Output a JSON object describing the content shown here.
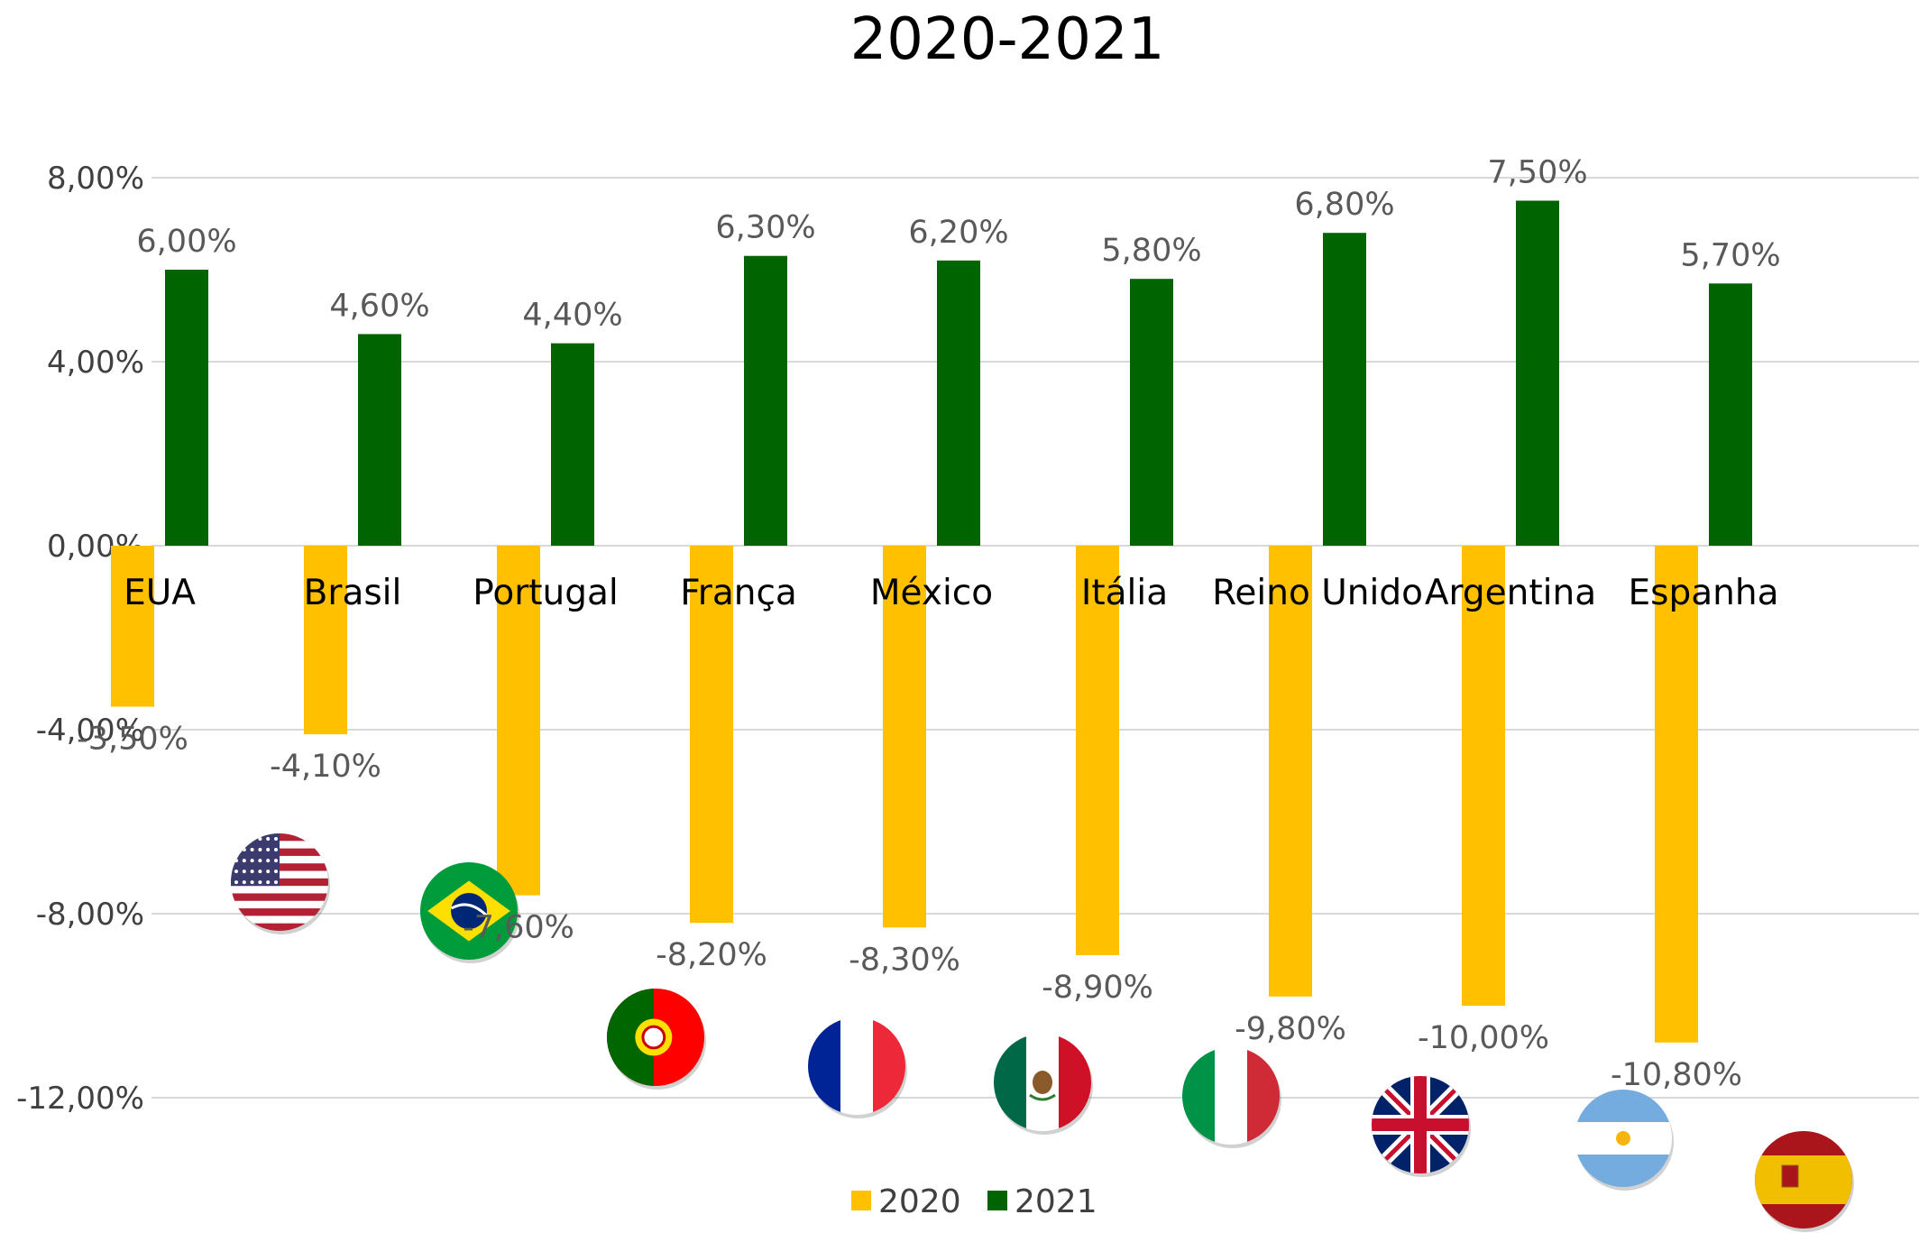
{
  "chart_data": {
    "type": "bar",
    "title": "2020-2021",
    "xlabel": "",
    "ylabel": "",
    "ylim": [
      -14,
      8
    ],
    "y_ticks": [
      8,
      4,
      0,
      -4,
      -8,
      -12
    ],
    "y_tick_labels": [
      "8,00%",
      "4,00%",
      "0,00%",
      "-4,00%",
      "-8,00%",
      "-12,00%"
    ],
    "grid": true,
    "legend_position": "bottom",
    "categories": [
      "EUA",
      "Brasil",
      "Portugal",
      "França",
      "México",
      "Itália",
      "Reino Unido",
      "Argentina",
      "Espanha"
    ],
    "flag_icons": [
      "usa-flag-icon",
      "brazil-flag-icon",
      "portugal-flag-icon",
      "france-flag-icon",
      "mexico-flag-icon",
      "italy-flag-icon",
      "uk-flag-icon",
      "argentina-flag-icon",
      "spain-flag-icon"
    ],
    "series": [
      {
        "name": "2020",
        "color": "#FFC000",
        "values": [
          -3.5,
          -4.1,
          -7.6,
          -8.2,
          -8.3,
          -8.9,
          -9.8,
          -10.0,
          -10.8
        ],
        "labels": [
          "-3,50%",
          "-4,10%",
          "-7,60%",
          "-8,20%",
          "-8,30%",
          "-8,90%",
          "-9,80%",
          "-10,00%",
          "-10,80%"
        ]
      },
      {
        "name": "2021",
        "color": "#006400",
        "values": [
          6.0,
          4.6,
          4.4,
          6.3,
          6.2,
          5.8,
          6.8,
          7.5,
          5.7
        ],
        "labels": [
          "6,00%",
          "4,60%",
          "4,40%",
          "6,30%",
          "6,20%",
          "5,80%",
          "6,80%",
          "7,50%",
          "5,70%"
        ]
      }
    ]
  }
}
